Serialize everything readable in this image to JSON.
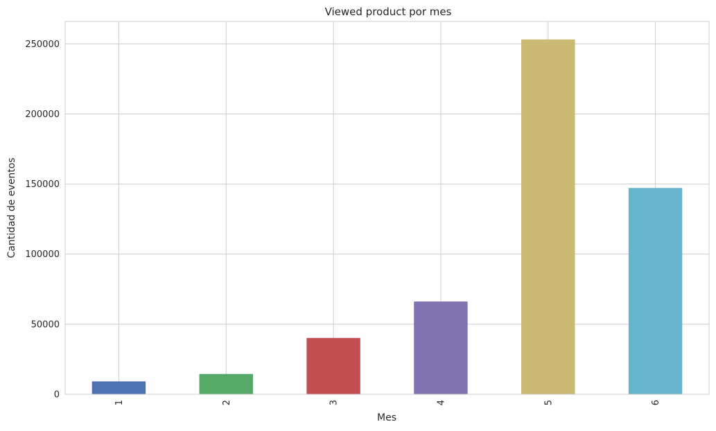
{
  "chart_data": {
    "type": "bar",
    "title": "Viewed product por mes",
    "xlabel": "Mes",
    "ylabel": "Cantidad de eventos",
    "categories": [
      "1",
      "2",
      "3",
      "4",
      "5",
      "6"
    ],
    "values": [
      9200,
      14500,
      40200,
      66200,
      253200,
      147200
    ],
    "colors": [
      "#4c72b0",
      "#55a868",
      "#c44e52",
      "#8172b2",
      "#ccb974",
      "#64b5cd"
    ],
    "ylim": [
      0,
      266000
    ],
    "yticks": [
      0,
      50000,
      100000,
      150000,
      200000,
      250000
    ],
    "ytick_labels": [
      "0",
      "50000",
      "100000",
      "150000",
      "200000",
      "250000"
    ],
    "grid": true,
    "legend": false
  }
}
